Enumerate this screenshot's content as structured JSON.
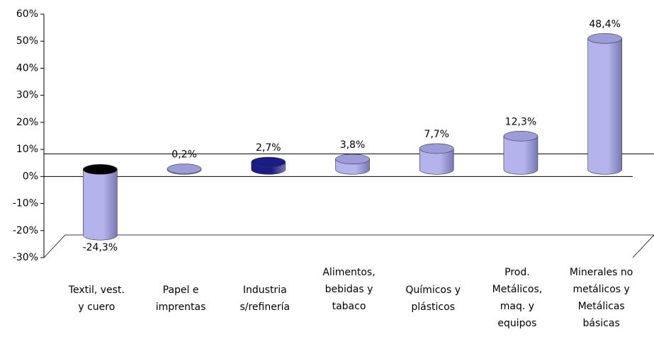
{
  "chart_data": {
    "type": "bar",
    "categories": [
      [
        "Textil, vest.",
        "y cuero"
      ],
      [
        "Papel e",
        "imprentas"
      ],
      [
        "Industria",
        "s/refinería"
      ],
      [
        "Alimentos,",
        "bebidas y",
        "tabaco"
      ],
      [
        "Químicos y",
        "plásticos"
      ],
      [
        "Prod.",
        "Metálicos,",
        "maq. y",
        "equipos"
      ],
      [
        "Minerales no",
        "metálicos y",
        "Metálicas",
        "básicas"
      ]
    ],
    "values": [
      -24.3,
      0.2,
      2.7,
      3.8,
      7.7,
      12.3,
      48.4
    ],
    "value_labels": [
      "-24,3%",
      "0,2%",
      "2,7%",
      "3,8%",
      "7,7%",
      "12,3%",
      "48,4%"
    ],
    "colors": [
      "#b4b4ec",
      "#b4b4ec",
      "#1c1c86",
      "#b4b4ec",
      "#b4b4ec",
      "#b4b4ec",
      "#b4b4ec"
    ],
    "top_colors": [
      "#000000",
      "#9c9cd8",
      "#1c1c86",
      "#9c9cd8",
      "#9c9cd8",
      "#9c9cd8",
      "#9c9cd8"
    ],
    "ylim": [
      -30,
      60
    ],
    "yticks": [
      {
        "value": -30,
        "label": "-30%"
      },
      {
        "value": -20,
        "label": "-20%"
      },
      {
        "value": -10,
        "label": "-10%"
      },
      {
        "value": 0,
        "label": "0%"
      },
      {
        "value": 10,
        "label": "10%"
      },
      {
        "value": 20,
        "label": "20%"
      },
      {
        "value": 30,
        "label": "30%"
      },
      {
        "value": 40,
        "label": "40%"
      },
      {
        "value": 50,
        "label": "50%"
      },
      {
        "value": 60,
        "label": "60%"
      }
    ]
  }
}
